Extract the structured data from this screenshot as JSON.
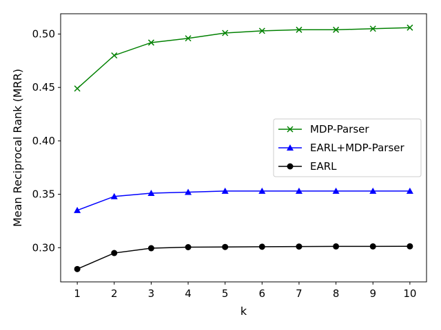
{
  "chart_data": {
    "type": "line",
    "title": "",
    "xlabel": "k",
    "ylabel": "Mean Reciprocal Rank (MRR)",
    "x": [
      1,
      2,
      3,
      4,
      5,
      6,
      7,
      8,
      9,
      10
    ],
    "xlim": [
      0.55,
      10.45
    ],
    "ylim": [
      0.268,
      0.519
    ],
    "xticks": [
      1,
      2,
      3,
      4,
      5,
      6,
      7,
      8,
      9,
      10
    ],
    "yticks": [
      0.3,
      0.35,
      0.4,
      0.45,
      0.5
    ],
    "ytick_labels": [
      "0.30",
      "0.35",
      "0.40",
      "0.45",
      "0.50"
    ],
    "grid": false,
    "legend_position": "center-right",
    "series": [
      {
        "name": "MDP-Parser",
        "color": "#008000",
        "marker": "x",
        "values": [
          0.449,
          0.48,
          0.492,
          0.496,
          0.501,
          0.503,
          0.504,
          0.504,
          0.505,
          0.506
        ]
      },
      {
        "name": "EARL+MDP-Parser",
        "color": "#0000ff",
        "marker": "triangle",
        "values": [
          0.335,
          0.348,
          0.351,
          0.352,
          0.353,
          0.353,
          0.353,
          0.353,
          0.353,
          0.353
        ]
      },
      {
        "name": "EARL",
        "color": "#000000",
        "marker": "circle",
        "values": [
          0.28,
          0.295,
          0.2995,
          0.3005,
          0.3007,
          0.3009,
          0.3011,
          0.3012,
          0.3012,
          0.3013
        ]
      }
    ]
  }
}
